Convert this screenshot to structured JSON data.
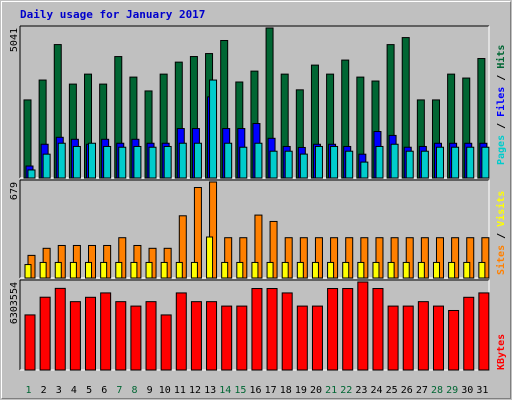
{
  "title": "Daily usage for January 2017",
  "colors": {
    "pages": "#00cccc",
    "files": "#0000ff",
    "hits": "#006633",
    "sites": "#ff8000",
    "visits": "#ffff00",
    "kbytes": "#ff0000",
    "weekday_tick": "#000000",
    "weekend_tick": "#006633",
    "background": "#c0c0c0"
  },
  "legend": {
    "top": [
      "Pages",
      "Files",
      "Hits"
    ],
    "middle": [
      "Sites",
      "Visits"
    ],
    "bottom": [
      "KBytes"
    ],
    "separator": " / "
  },
  "chart_data": [
    {
      "type": "bar",
      "name": "hits-files-pages",
      "categories": [
        "1",
        "2",
        "3",
        "4",
        "5",
        "6",
        "7",
        "8",
        "9",
        "10",
        "11",
        "12",
        "13",
        "14",
        "15",
        "16",
        "17",
        "18",
        "19",
        "20",
        "21",
        "22",
        "23",
        "24",
        "25",
        "26",
        "27",
        "28",
        "29",
        "30",
        "31"
      ],
      "ymax_label": "5041",
      "ylim": [
        0,
        5041
      ],
      "series": [
        {
          "name": "Hits",
          "values": [
            2624,
            3292,
            4484,
            3156,
            3491,
            3156,
            4081,
            3391,
            2926,
            3491,
            3894,
            4082,
            4182,
            4621,
            3226,
            3592,
            5041,
            3491,
            2963,
            3794,
            3491,
            3963,
            3391,
            3259,
            4483,
            4719,
            2624,
            2624,
            3491,
            3359,
            4015
          ]
        },
        {
          "name": "Files",
          "values": [
            403,
            1134,
            1368,
            1301,
            1134,
            1301,
            1168,
            1301,
            1168,
            1168,
            1662,
            1662,
            2726,
            1662,
            1662,
            1831,
            1334,
            1060,
            1026,
            1134,
            1134,
            1060,
            800,
            1562,
            1431,
            1034,
            1060,
            1167,
            1167,
            1167,
            1167
          ]
        },
        {
          "name": "Pages",
          "values": [
            270,
            801,
            1168,
            1060,
            1168,
            1060,
            1034,
            1060,
            1034,
            1060,
            1168,
            1168,
            3292,
            1168,
            1034,
            1168,
            900,
            900,
            803,
            1060,
            1060,
            900,
            534,
            1060,
            1134,
            900,
            900,
            1034,
            1034,
            1034,
            1034
          ]
        }
      ]
    },
    {
      "type": "bar",
      "name": "sites-visits",
      "categories": [
        "1",
        "2",
        "3",
        "4",
        "5",
        "6",
        "7",
        "8",
        "9",
        "10",
        "11",
        "12",
        "13",
        "14",
        "15",
        "16",
        "17",
        "18",
        "19",
        "20",
        "21",
        "22",
        "23",
        "24",
        "25",
        "26",
        "27",
        "28",
        "29",
        "30",
        "31"
      ],
      "ymax_label": "679",
      "ylim": [
        0,
        679
      ],
      "series": [
        {
          "name": "Sites",
          "values": [
            160,
            210,
            230,
            230,
            230,
            230,
            285,
            230,
            210,
            210,
            440,
            640,
            679,
            285,
            285,
            445,
            400,
            285,
            285,
            285,
            285,
            285,
            285,
            285,
            285,
            285,
            285,
            285,
            285,
            285,
            285
          ]
        },
        {
          "name": "Visits",
          "values": [
            95,
            110,
            110,
            110,
            110,
            110,
            110,
            110,
            110,
            110,
            110,
            110,
            290,
            110,
            110,
            110,
            110,
            110,
            110,
            110,
            110,
            110,
            110,
            110,
            110,
            110,
            110,
            110,
            110,
            110,
            110
          ]
        }
      ]
    },
    {
      "type": "bar",
      "name": "kbytes",
      "categories": [
        "1",
        "2",
        "3",
        "4",
        "5",
        "6",
        "7",
        "8",
        "9",
        "10",
        "11",
        "12",
        "13",
        "14",
        "15",
        "16",
        "17",
        "18",
        "19",
        "20",
        "21",
        "22",
        "23",
        "24",
        "25",
        "26",
        "27",
        "28",
        "29",
        "30",
        "31"
      ],
      "ymax_label": "6303554",
      "ylim": [
        0,
        6303554
      ],
      "series": [
        {
          "name": "KBytes",
          "values": [
            3946120,
            5214160,
            5847300,
            4896015,
            5208290,
            5522240,
            4896015,
            4578430,
            4896015,
            3945130,
            5520960,
            4896015,
            4896015,
            4578430,
            4578430,
            5836260,
            5836260,
            5520960,
            4578430,
            4578430,
            5836260,
            5836260,
            6303554,
            5836260,
            4578430,
            4578430,
            4896015,
            4578430,
            4262395,
            5208290,
            5522240
          ]
        }
      ]
    }
  ],
  "weekend_days": [
    1,
    7,
    8,
    14,
    15,
    21,
    22,
    28,
    29
  ]
}
